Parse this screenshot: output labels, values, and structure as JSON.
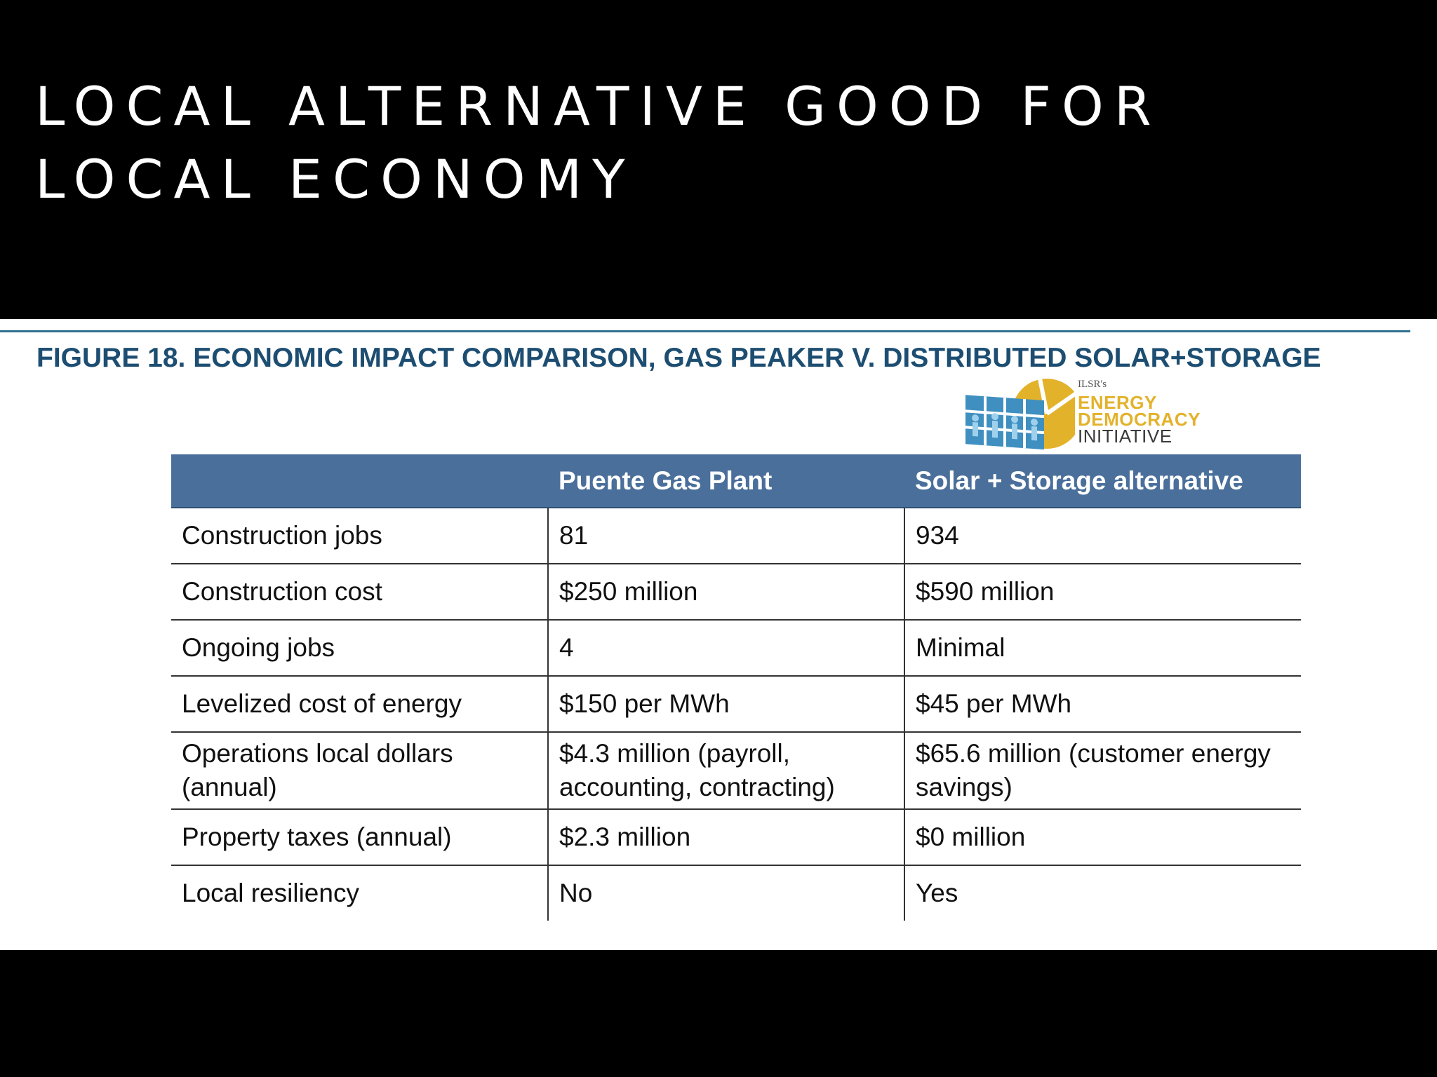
{
  "slide": {
    "title_lines": [
      "LOCAL ALTERNATIVE GOOD FOR",
      "LOCAL ECONOMY"
    ]
  },
  "figure": {
    "caption": "FIGURE 18. ECONOMIC IMPACT COMPARISON, GAS PEAKER V. DISTRIBUTED SOLAR+STORAGE",
    "logo": {
      "org": "ILSR's",
      "line1": "ENERGY",
      "line2": "DEMOCRACY",
      "line3": "INITIATIVE"
    },
    "table": {
      "headers": [
        "",
        "Puente Gas Plant",
        "Solar + Storage alternative"
      ],
      "rows": [
        [
          "Construction jobs",
          "81",
          "934"
        ],
        [
          "Construction cost",
          "$250 million",
          "$590 million"
        ],
        [
          "Ongoing jobs",
          "4",
          "Minimal"
        ],
        [
          "Levelized cost of energy",
          "$150 per MWh",
          "$45 per MWh"
        ],
        [
          "Operations local dollars (annual)",
          "$4.3 million (payroll, accounting, contracting)",
          "$65.6 million (customer energy savings)"
        ],
        [
          "Property taxes (annual)",
          "$2.3 million",
          "$0 million"
        ],
        [
          "Local resiliency",
          "No",
          "Yes"
        ]
      ]
    }
  },
  "colors": {
    "caption": "#1d4e72",
    "header_bg": "#4a6f9b",
    "logo_gold": "#e3b22b",
    "logo_blue": "#3f8fc0"
  }
}
